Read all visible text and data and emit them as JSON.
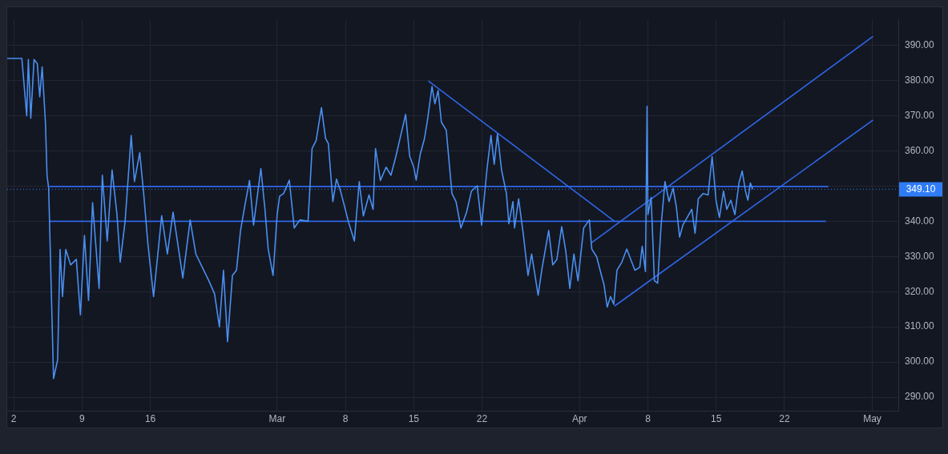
{
  "chart_data": {
    "type": "line",
    "grid": true,
    "legend": false,
    "marker": "none",
    "xlim": [
      "--02-01T08:00",
      "--05-03T16:00"
    ],
    "xticks": [
      {
        "value": "--02-02",
        "label": "2"
      },
      {
        "value": "--02-09",
        "label": "9"
      },
      {
        "value": "--02-16",
        "label": "16"
      },
      {
        "value": "--03-01",
        "label": "Mar"
      },
      {
        "value": "--03-08",
        "label": "8"
      },
      {
        "value": "--03-15",
        "label": "15"
      },
      {
        "value": "--03-22",
        "label": "22"
      },
      {
        "value": "--04-01",
        "label": "Apr"
      },
      {
        "value": "--04-08",
        "label": "8"
      },
      {
        "value": "--04-15",
        "label": "15"
      },
      {
        "value": "--04-22",
        "label": "22"
      },
      {
        "value": "--05-01",
        "label": "May"
      }
    ],
    "ylim": [
      286,
      397.4
    ],
    "yticks": [
      {
        "value": 290,
        "label": "290.00"
      },
      {
        "value": 300,
        "label": "300.00"
      },
      {
        "value": 310,
        "label": "310.00"
      },
      {
        "value": 320,
        "label": "320.00"
      },
      {
        "value": 330,
        "label": "330.00"
      },
      {
        "value": 340,
        "label": "340.00"
      },
      {
        "value": 350,
        "label": null
      },
      {
        "value": 360,
        "label": "360.00"
      },
      {
        "value": 370,
        "label": "370.00"
      },
      {
        "value": 380,
        "label": "380.00"
      },
      {
        "value": 390,
        "label": "390.00"
      }
    ],
    "ref_lines": [
      {
        "axis": "y",
        "value": 349.1,
        "label": "349.10",
        "color": "#2f7cf6",
        "line_style": "dotted"
      }
    ],
    "series": [
      {
        "color": "#4a8ff0",
        "x": [
          "--02-01T08:00",
          "--02-02T20:00",
          "--02-03T08:00",
          "--02-03T12:00",
          "--02-03T18:00",
          "--02-04T02:00",
          "--02-04T10:00",
          "--02-04T16:00",
          "--02-04T22:00",
          "--02-05T06:00",
          "--02-05T10:00",
          "--02-05T14:00",
          "--02-06T02:00",
          "--02-06T12:00",
          "--02-06T18:00",
          "--02-07T00:00",
          "--02-07T08:00",
          "--02-07T20:00",
          "--02-08T10:00",
          "--02-08T20:00",
          "--02-09T06:00",
          "--02-09T16:00",
          "--02-10T02:00",
          "--02-10T18:00",
          "--02-11T02:00",
          "--02-11T14:00",
          "--02-12T02:00",
          "--02-12T14:00",
          "--02-12T22:00",
          "--02-13T10:00",
          "--02-14T01:00",
          "--02-14T09:00",
          "--02-14T22:00",
          "--02-15T08:00",
          "--02-15T18:00",
          "--02-16T08:00",
          "--02-17T04:00",
          "--02-17T18:00",
          "--02-18T08:00",
          "--02-19T08:00",
          "--02-20T02:00",
          "--02-20T16:00",
          "--02-22T00:00",
          "--02-22T14:00",
          "--02-23T02:00",
          "--02-23T12:00",
          "--02-23T22:00",
          "--02-24T10:00",
          "--02-24T20:00",
          "--02-25T06:00",
          "--02-25T16:00",
          "--02-26T04:00",
          "--02-26T14:00",
          "--02-27T08:00",
          "--02-27T18:00",
          "--02-28T02:00",
          "--02-28T14:00",
          "--03-01T00:00",
          "--03-01T06:00",
          "--03-01T16:00",
          "--03-02T06:00",
          "--03-02T18:00",
          "--03-03T08:00",
          "--03-04T04:00",
          "--03-04T14:00",
          "--03-05T00:00",
          "--03-05T13:00",
          "--03-05T23:00",
          "--03-06T06:00",
          "--03-06T17:00",
          "--03-07T02:00",
          "--03-07T12:00",
          "--03-08T08:00",
          "--03-08T22:00",
          "--03-09T10:00",
          "--03-09T20:00",
          "--03-10T10:00",
          "--03-10T20:00",
          "--03-11T02:00",
          "--03-11T14:00",
          "--03-12T04:00",
          "--03-12T16:00",
          "--03-13T04:00",
          "--03-14T04:00",
          "--03-14T14:00",
          "--03-15T00:00",
          "--03-15T06:00",
          "--03-15T16:00",
          "--03-16T02:00",
          "--03-16T10:00",
          "--03-16T21:00",
          "--03-17T04:00",
          "--03-17T12:00",
          "--03-17T20:00",
          "--03-18T08:00",
          "--03-18T22:00",
          "--03-19T08:00",
          "--03-19T20:00",
          "--03-20T10:00",
          "--03-20T22:00",
          "--03-21T12:00",
          "--03-21T23:00",
          "--03-22T12:00",
          "--03-22T22:00",
          "--03-23T06:00",
          "--03-23T14:00",
          "--03-24T00:00",
          "--03-24T12:00",
          "--03-24T18:00",
          "--03-25T04:00",
          "--03-25T08:00",
          "--03-25T18:00",
          "--03-26T06:00",
          "--03-26T17:00",
          "--03-27T02:00",
          "--03-27T18:00",
          "--03-28T04:00",
          "--03-28T20:00",
          "--03-29T06:00",
          "--03-29T16:00",
          "--03-30T04:00",
          "--03-30T14:00",
          "--03-31T00:00",
          "--03-31T10:00",
          "--03-31T20:00",
          "--04-01T10:00",
          "--04-02T00:00",
          "--04-02T06:00",
          "--04-02T18:00",
          "--04-03T04:00",
          "--04-03T12:00",
          "--04-03T20:00",
          "--04-04T04:00",
          "--04-04T12:00",
          "--04-04T20:00",
          "--04-05T08:00",
          "--04-05T20:00",
          "--04-06T16:00",
          "--04-07T04:00",
          "--04-07T10:00",
          "--04-07T18:00",
          "--04-07T22:00",
          "--04-08T00:00",
          "--04-08T08:00",
          "--04-08T16:00",
          "--04-09T00:00",
          "--04-09T08:00",
          "--04-09T18:00",
          "--04-10T04:00",
          "--04-10T14:00",
          "--04-10T22:00",
          "--04-11T06:00",
          "--04-11T14:00",
          "--04-12T12:00",
          "--04-12T20:00",
          "--04-13T04:00",
          "--04-13T16:00",
          "--04-14T04:00",
          "--04-14T14:00",
          "--04-15T00:00",
          "--04-15T08:00",
          "--04-15T18:00",
          "--04-16T02:00",
          "--04-16T12:00",
          "--04-16T22:00",
          "--04-17T08:00",
          "--04-17T16:00",
          "--04-18T00:00",
          "--04-18T06:00",
          "--04-18T12:00",
          "--04-18T18:00"
        ],
        "values": [
          386.3,
          386.3,
          370,
          386,
          369.3,
          386,
          384.8,
          375.4,
          383.9,
          368.2,
          353,
          349.4,
          295.3,
          300.6,
          332,
          318.6,
          332,
          327.6,
          329.2,
          313.4,
          336,
          317.5,
          345.3,
          320.9,
          353.1,
          334.4,
          354.6,
          341.9,
          328.4,
          340,
          364.4,
          351.3,
          359.5,
          347.5,
          333.7,
          318.6,
          341.6,
          330.7,
          342.6,
          323.9,
          340.4,
          330.7,
          323.1,
          319.4,
          310,
          326.1,
          305.8,
          324.6,
          326.1,
          337.4,
          344.1,
          351.6,
          338.9,
          355,
          343.4,
          332.1,
          324.6,
          341.9,
          347.1,
          347.9,
          351.7,
          338.1,
          340.4,
          340,
          360.7,
          363,
          372.3,
          363.6,
          362.1,
          345.6,
          352,
          348.6,
          339.6,
          334.4,
          351.3,
          341.5,
          347.5,
          343.4,
          360.7,
          351.6,
          355.4,
          353.1,
          358.4,
          370.4,
          358.5,
          355.4,
          351.7,
          359.1,
          363.3,
          368.9,
          378.3,
          373.4,
          377.2,
          368.2,
          365.9,
          347.9,
          345.6,
          338.1,
          342.6,
          348.6,
          350.1,
          338.9,
          354.6,
          364.4,
          356.2,
          364.8,
          354.6,
          347.9,
          339.3,
          345.6,
          338.1,
          346.4,
          335.9,
          324.6,
          330.7,
          319,
          326.9,
          337.4,
          327.6,
          329.1,
          338.5,
          331.5,
          320.9,
          330.7,
          323.1,
          338.1,
          340.4,
          332.1,
          329.9,
          325.4,
          322,
          315.6,
          318.6,
          316.4,
          326.1,
          328.4,
          332.1,
          326.1,
          326.9,
          332.9,
          325.7,
          372.7,
          341.9,
          346.8,
          323.1,
          322.4,
          338.1,
          351.3,
          345.6,
          349.4,
          344.1,
          335.5,
          338.9,
          343.4,
          336.6,
          346.4,
          347.9,
          347.5,
          358.4,
          345.6,
          341.1,
          348.6,
          343.4,
          346,
          341.9,
          350.9,
          354.3,
          348.6,
          346,
          350.9,
          349.1
        ]
      },
      {
        "color": "#2f66e8",
        "x": [
          "--02-05T16:00",
          "--04-26T12:00"
        ],
        "values": [
          349.9,
          349.9
        ]
      },
      {
        "color": "#2f66e8",
        "x": [
          "--02-05T16:00",
          "--04-26T06:00"
        ],
        "values": [
          340,
          340
        ]
      },
      {
        "color": "#2f66e8",
        "x": [
          "--03-16T12:00",
          "--04-04T14:00"
        ],
        "values": [
          379.9,
          340
        ]
      },
      {
        "color": "#2f66e8",
        "x": [
          "--04-02T04:00",
          "--05-01T02:00"
        ],
        "values": [
          333.8,
          392.6
        ]
      },
      {
        "color": "#2f66e8",
        "x": [
          "--04-04T14:00",
          "--05-01T02:00"
        ],
        "values": [
          315.9,
          368.8
        ]
      }
    ]
  }
}
